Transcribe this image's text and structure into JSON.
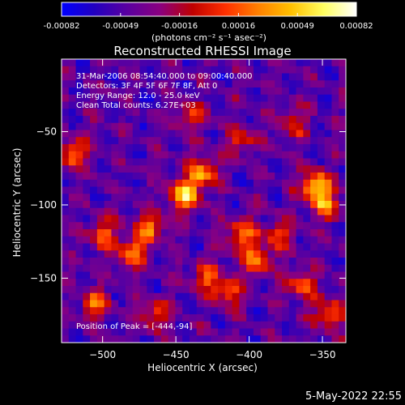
{
  "colorbar": {
    "ticks": [
      "-0.00082",
      "-0.00049",
      "-0.00016",
      "0.00016",
      "0.00049",
      "0.00082"
    ],
    "unit_label": "(photons cm⁻² s⁻¹ asec⁻²)",
    "colors": [
      "#0000ff",
      "#2200c0",
      "#5a00a0",
      "#8a0080",
      "#c00000",
      "#ff3000",
      "#ff8000",
      "#ffc000",
      "#ffff60",
      "#ffffff"
    ]
  },
  "chart_data": {
    "type": "heatmap",
    "title": "Reconstructed RHESSI Image",
    "xlabel": "Heliocentric X (arcsec)",
    "ylabel": "Heliocentric Y (arcsec)",
    "x_ticks": [
      -500,
      -450,
      -400,
      -350
    ],
    "y_ticks": [
      -50,
      -100,
      -150
    ],
    "xlim": [
      -528,
      -334
    ],
    "ylim": [
      -194,
      -0.5
    ],
    "zlim": [
      -0.00082,
      0.00082
    ],
    "peak": [
      -444,
      -94
    ],
    "info_lines": [
      "31-Mar-2006 08:54:40.000 to 09:00:40.000",
      "Detectors: 3F 4F 5F 6F 7F 8F, Att 0",
      "Energy Range: 12.0 - 25.0 keV",
      "Clean     Total counts: 6.27E+03"
    ],
    "peak_label": "Position of Peak = [-444,-94]",
    "sources": [
      {
        "x": -444,
        "y": -94,
        "amp": 1.0
      },
      {
        "x": -432,
        "y": -78,
        "amp": 0.8
      },
      {
        "x": -355,
        "y": -87,
        "amp": 0.9
      },
      {
        "x": -348,
        "y": -100,
        "amp": 0.7
      },
      {
        "x": -467,
        "y": -115,
        "amp": 0.7
      },
      {
        "x": -480,
        "y": -133,
        "amp": 0.75
      },
      {
        "x": -500,
        "y": -120,
        "amp": 0.6
      },
      {
        "x": -405,
        "y": -120,
        "amp": 0.7
      },
      {
        "x": -395,
        "y": -138,
        "amp": 0.7
      },
      {
        "x": -415,
        "y": -160,
        "amp": 0.6
      },
      {
        "x": -430,
        "y": -150,
        "amp": 0.55
      },
      {
        "x": -365,
        "y": -155,
        "amp": 0.6
      },
      {
        "x": -345,
        "y": -175,
        "amp": 0.65
      },
      {
        "x": -465,
        "y": -175,
        "amp": 0.55
      },
      {
        "x": -505,
        "y": -168,
        "amp": 0.6
      },
      {
        "x": -520,
        "y": -65,
        "amp": 0.7
      },
      {
        "x": -405,
        "y": -55,
        "amp": 0.5
      },
      {
        "x": -440,
        "y": -40,
        "amp": 0.45
      },
      {
        "x": -370,
        "y": -45,
        "amp": 0.45
      },
      {
        "x": -380,
        "y": -120,
        "amp": 0.5
      }
    ]
  },
  "footer": {
    "date_stamp": "5-May-2022 22:55"
  }
}
